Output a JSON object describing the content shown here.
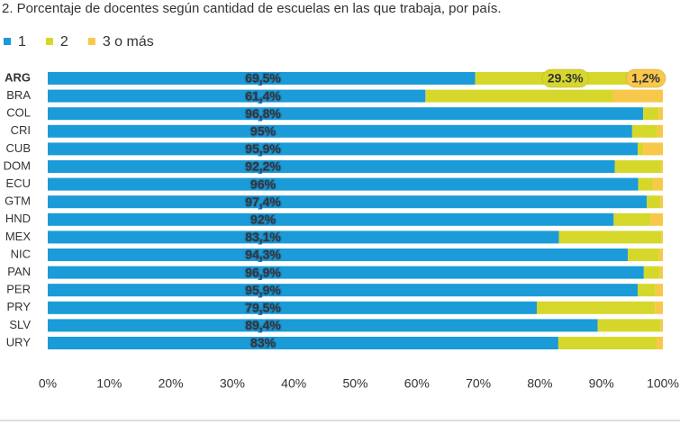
{
  "chart_data": {
    "type": "stacked-bar-horizontal",
    "title": "2. Porcentaje de docentes según cantidad de escuelas en las que trabaja, por país.",
    "categories": [
      "ARG",
      "BRA",
      "COL",
      "CRI",
      "CUB",
      "DOM",
      "ECU",
      "GTM",
      "HND",
      "MEX",
      "NIC",
      "PAN",
      "PER",
      "PRY",
      "SLV",
      "URY"
    ],
    "series": [
      {
        "name": "1",
        "color": "#1b9bd7",
        "values": [
          69.5,
          61.4,
          96.8,
          95,
          95.9,
          92.2,
          96,
          97.4,
          92,
          83.1,
          94.3,
          96.9,
          95.9,
          79.5,
          89.4,
          83
        ],
        "value_labels": [
          "69,5%",
          "61,4%",
          "96,8%",
          "95%",
          "95,9%",
          "92,2%",
          "96%",
          "97,4%",
          "92%",
          "83,1%",
          "94,3%",
          "96,9%",
          "95,9%",
          "79,5%",
          "89,4%",
          "83%"
        ]
      },
      {
        "name": "2",
        "color": "#d5d82b",
        "values": [
          29.3,
          30.4,
          2.5,
          4.1,
          0.9,
          7.5,
          2.4,
          2.2,
          6,
          16.7,
          5.1,
          2.6,
          2.9,
          19.2,
          10.2,
          15.9
        ],
        "value_labels": [
          "29.3%",
          null,
          null,
          null,
          null,
          null,
          null,
          null,
          null,
          null,
          null,
          null,
          null,
          null,
          null,
          null
        ]
      },
      {
        "name": "3 o más",
        "color": "#f8c84a",
        "values": [
          1.2,
          8.2,
          0.7,
          0.9,
          3.2,
          0.3,
          1.6,
          0.4,
          2,
          0.2,
          0.6,
          0.5,
          1.2,
          1.3,
          0.4,
          1.1
        ],
        "value_labels": [
          "1,2%",
          null,
          null,
          null,
          null,
          null,
          null,
          null,
          null,
          null,
          null,
          null,
          null,
          null,
          null,
          null
        ]
      }
    ],
    "xlim": [
      0,
      100
    ],
    "xticks": [
      {
        "value": 0,
        "label": "0%"
      },
      {
        "value": 10,
        "label": "10%"
      },
      {
        "value": 20,
        "label": "20%"
      },
      {
        "value": 30,
        "label": "30%"
      },
      {
        "value": 40,
        "label": "40%"
      },
      {
        "value": 50,
        "label": "50%"
      },
      {
        "value": 60,
        "label": "60%"
      },
      {
        "value": 70,
        "label": "70%"
      },
      {
        "value": 80,
        "label": "80%"
      },
      {
        "value": 90,
        "label": "90%"
      },
      {
        "value": 100,
        "label": "100%"
      }
    ],
    "grid": false
  }
}
